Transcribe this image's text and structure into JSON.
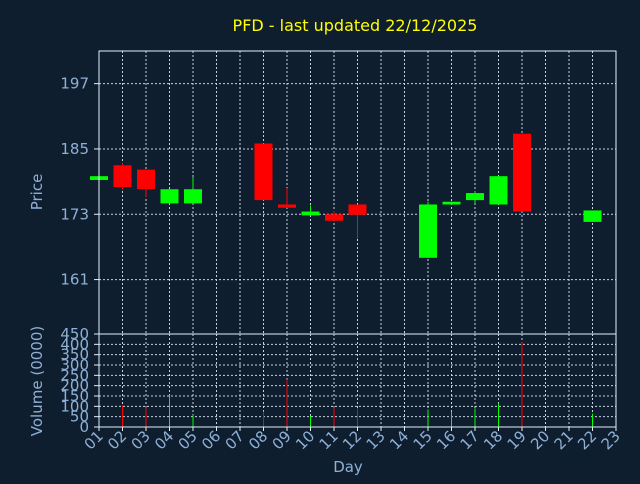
{
  "title": "PFD - last updated 22/12/2025",
  "colors": {
    "background": "#0f1e2f",
    "title": "#ffff00",
    "axis_text": "#8fb0d6",
    "axis_line": "#e6eef7",
    "grid": "#c8d3de",
    "up": "#00ff00",
    "down": "#ff0000"
  },
  "chart_data": [
    {
      "type": "candlestick",
      "ylabel": "Price",
      "ylim": [
        151,
        203
      ],
      "yticks": [
        161,
        173,
        185,
        197
      ],
      "grid": true,
      "candles": [
        {
          "day": "01",
          "open": 179.3,
          "close": 180.0,
          "high": 180.0,
          "low": 179.3
        },
        {
          "day": "02",
          "open": 182.0,
          "close": 178.0,
          "high": 182.4,
          "low": 177.5
        },
        {
          "day": "03",
          "open": 181.2,
          "close": 177.6,
          "high": 181.2,
          "low": 176.2
        },
        {
          "day": "04",
          "open": 175.0,
          "close": 177.6,
          "high": 177.6,
          "low": 175.0
        },
        {
          "day": "05",
          "open": 175.0,
          "close": 177.6,
          "high": 179.9,
          "low": 175.0
        },
        {
          "day": "08",
          "open": 186.0,
          "close": 175.6,
          "high": 186.0,
          "low": 175.6
        },
        {
          "day": "09",
          "open": 174.8,
          "close": 174.2,
          "high": 177.8,
          "low": 174.2
        },
        {
          "day": "10",
          "open": 172.8,
          "close": 173.5,
          "high": 174.6,
          "low": 172.8
        },
        {
          "day": "11",
          "open": 173.0,
          "close": 171.8,
          "high": 173.6,
          "low": 171.8
        },
        {
          "day": "12",
          "open": 174.8,
          "close": 172.9,
          "high": 174.8,
          "low": 168.5
        },
        {
          "day": "15",
          "open": 165.0,
          "close": 174.8,
          "high": 175.3,
          "low": 165.0
        },
        {
          "day": "16",
          "open": 174.8,
          "close": 175.3,
          "high": 175.3,
          "low": 174.8
        },
        {
          "day": "17",
          "open": 175.6,
          "close": 176.9,
          "high": 177.3,
          "low": 175.0
        },
        {
          "day": "18",
          "open": 174.8,
          "close": 180.0,
          "high": 180.0,
          "low": 174.8
        },
        {
          "day": "19",
          "open": 187.8,
          "close": 173.5,
          "high": 187.8,
          "low": 173.5
        },
        {
          "day": "22",
          "open": 171.6,
          "close": 173.7,
          "high": 173.7,
          "low": 171.6
        }
      ]
    },
    {
      "type": "bar",
      "ylabel": "Volume (0000)",
      "xlabel": "Day",
      "ylim": [
        0,
        450
      ],
      "yticks": [
        0,
        50,
        100,
        150,
        200,
        250,
        300,
        350,
        400,
        450
      ],
      "categories": [
        "01",
        "02",
        "03",
        "04",
        "05",
        "06",
        "07",
        "08",
        "09",
        "10",
        "11",
        "12",
        "13",
        "14",
        "15",
        "16",
        "17",
        "18",
        "19",
        "20",
        "21",
        "22",
        "23"
      ],
      "bars": [
        {
          "day": "02",
          "value": 105,
          "direction": "down"
        },
        {
          "day": "03",
          "value": 95,
          "direction": "down"
        },
        {
          "day": "04",
          "value": 155,
          "direction": "up"
        },
        {
          "day": "05",
          "value": 60,
          "direction": "up"
        },
        {
          "day": "08",
          "value": 75,
          "direction": "down"
        },
        {
          "day": "09",
          "value": 230,
          "direction": "down"
        },
        {
          "day": "10",
          "value": 55,
          "direction": "up"
        },
        {
          "day": "11",
          "value": 95,
          "direction": "down"
        },
        {
          "day": "12",
          "value": 90,
          "direction": "down"
        },
        {
          "day": "15",
          "value": 85,
          "direction": "up"
        },
        {
          "day": "16",
          "value": 75,
          "direction": "up"
        },
        {
          "day": "17",
          "value": 90,
          "direction": "up"
        },
        {
          "day": "18",
          "value": 115,
          "direction": "up"
        },
        {
          "day": "19",
          "value": 410,
          "direction": "down"
        },
        {
          "day": "22",
          "value": 65,
          "direction": "up"
        }
      ]
    }
  ]
}
